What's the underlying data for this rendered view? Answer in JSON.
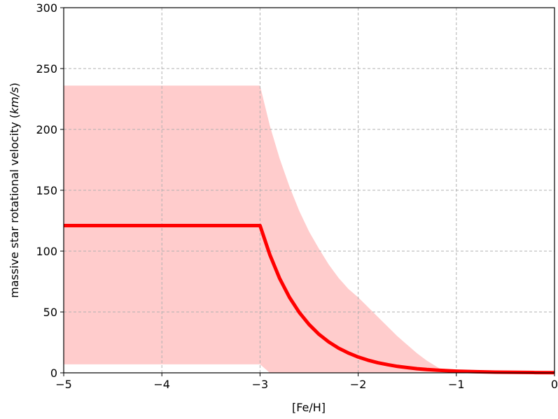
{
  "chart_data": {
    "type": "line",
    "title": "",
    "xlabel": "[Fe/H]",
    "ylabel": "massive star rotational velocity (km/s)",
    "ylabel_prefix": "massive star rotational velocity (",
    "ylabel_unit": "km/s",
    "ylabel_suffix": ")",
    "xlim": [
      -5,
      0
    ],
    "ylim": [
      0,
      300
    ],
    "x_ticks": [
      -5,
      -4,
      -3,
      -2,
      -1,
      0
    ],
    "x_tick_labels": [
      "−5",
      "−4",
      "−3",
      "−2",
      "−1",
      "0"
    ],
    "y_ticks": [
      0,
      50,
      100,
      150,
      200,
      250,
      300
    ],
    "y_tick_labels": [
      "0",
      "50",
      "100",
      "150",
      "200",
      "250",
      "300"
    ],
    "grid": true,
    "series": [
      {
        "color": "#ff0000",
        "x": [
          -5,
          -3,
          -2.9,
          -2.8,
          -2.7,
          -2.6,
          -2.5,
          -2.4,
          -2.3,
          -2.2,
          -2.1,
          -2.0,
          -1.9,
          -1.8,
          -1.7,
          -1.6,
          -1.5,
          -1.4,
          -1.3,
          -1.2,
          -1.1,
          -1.0,
          -0.8,
          -0.6,
          -0.4,
          -0.2,
          0
        ],
        "y": [
          121,
          121,
          97,
          77.5,
          62,
          49.6,
          39.7,
          31.7,
          25.4,
          20.3,
          16.3,
          13,
          10.4,
          8.3,
          6.7,
          5.3,
          4.3,
          3.4,
          2.7,
          2.2,
          1.8,
          1.4,
          0.9,
          0.6,
          0.4,
          0.25,
          0.15
        ]
      }
    ],
    "band": {
      "color": "#ffcccc",
      "x": [
        -5,
        -3,
        -2.9,
        -2.8,
        -2.7,
        -2.6,
        -2.5,
        -2.4,
        -2.3,
        -2.2,
        -2.1,
        -2.0,
        -1.9,
        -1.8,
        -1.7,
        -1.6,
        -1.5,
        -1.4,
        -1.3,
        -1.2,
        -1.1
      ],
      "upper": [
        236,
        236,
        203,
        176,
        153,
        133,
        116,
        102,
        89,
        78,
        69,
        62,
        54,
        46,
        38,
        30,
        23,
        16,
        10,
        5,
        0
      ],
      "lower": [
        7,
        7,
        0,
        0,
        0,
        0,
        0,
        0,
        0,
        0,
        0,
        0,
        0,
        0,
        0,
        0,
        0,
        0,
        0,
        0,
        0
      ]
    }
  }
}
